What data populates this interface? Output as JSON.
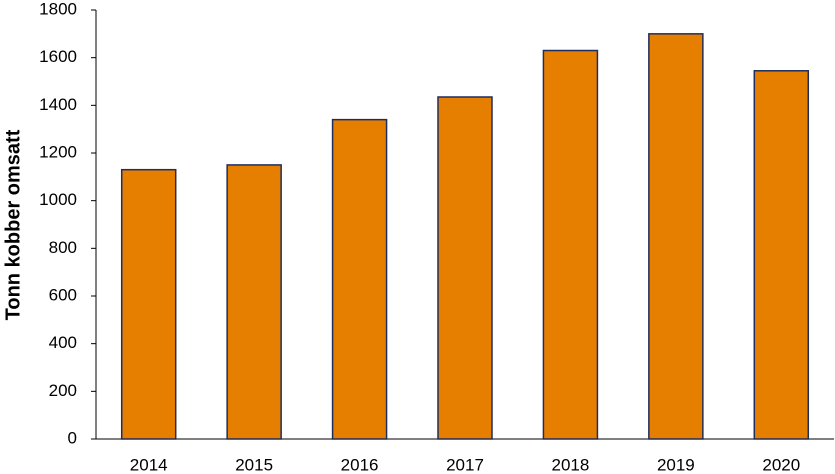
{
  "chart_data": {
    "type": "bar",
    "y_label": "Tonn kobber omsatt",
    "categories": [
      "2014",
      "2015",
      "2016",
      "2017",
      "2018",
      "2019",
      "2020"
    ],
    "values": [
      1130,
      1150,
      1340,
      1435,
      1630,
      1700,
      1545
    ],
    "color": "#e67e00",
    "edge_color": "#1f2d5c",
    "ylim": [
      0,
      1800
    ],
    "yticks": [
      0,
      200,
      400,
      600,
      800,
      1000,
      1200,
      1400,
      1600,
      1800
    ],
    "grid": false
  }
}
